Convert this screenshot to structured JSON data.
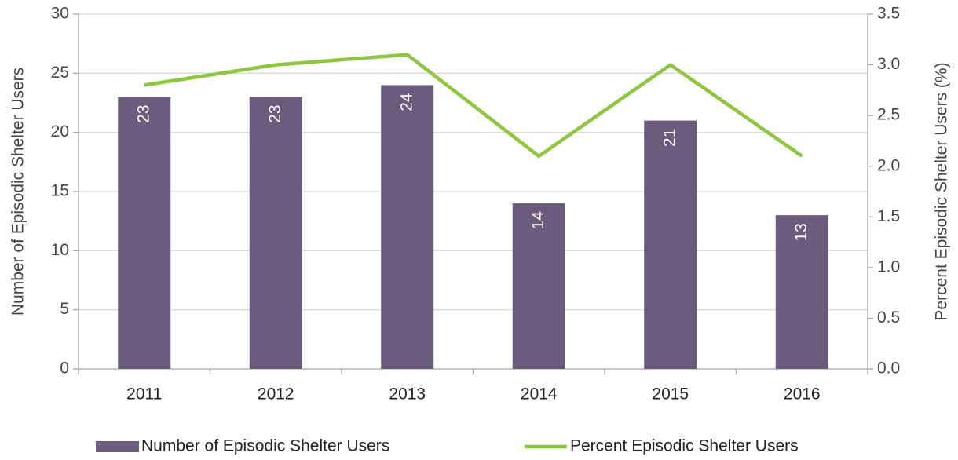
{
  "chart_data": {
    "type": "bar",
    "categories": [
      "2011",
      "2012",
      "2013",
      "2014",
      "2015",
      "2016"
    ],
    "series": [
      {
        "name": "Number of Episodic Shelter Users",
        "type": "bar",
        "color": "#6b5b7d",
        "values": [
          23,
          23,
          24,
          14,
          21,
          13
        ]
      },
      {
        "name": "Percent Episodic Shelter Users",
        "type": "line",
        "axis": "y2",
        "color": "#8dc63f",
        "values": [
          2.8,
          3.0,
          3.1,
          2.1,
          3.0,
          2.1
        ]
      }
    ],
    "ylabel": "Number of Episodic Shelter Users",
    "y2label": "Percent Episodic Shelter Users (%)",
    "ylim": [
      0,
      30
    ],
    "yticks": [
      0,
      5,
      10,
      15,
      20,
      25,
      30
    ],
    "y2lim": [
      0,
      3.5
    ],
    "y2ticks": [
      {
        "value": 0,
        "label": "0.0"
      },
      0.5,
      {
        "value": 1,
        "label": "1.0"
      },
      1.5,
      {
        "value": 2,
        "label": "2.0"
      },
      2.5,
      {
        "value": 3,
        "label": "3.0"
      },
      3.5
    ],
    "grid": true,
    "legend": "bottom"
  }
}
